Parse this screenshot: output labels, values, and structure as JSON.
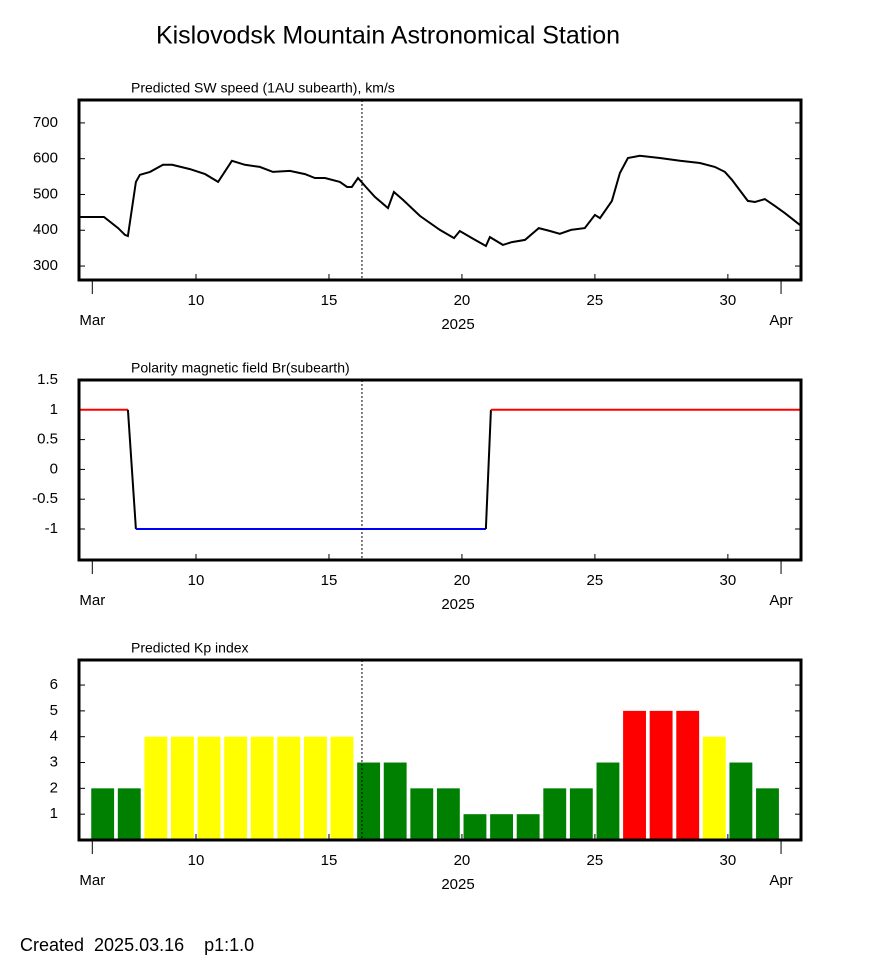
{
  "title": "Kislovodsk Mountain Astronomical Station",
  "footer": "Created  2025.03.16    p1:1.0",
  "chart_data": [
    {
      "type": "line",
      "title": "Predicted SW speed (1AU subearth), km/s",
      "color": "#000000",
      "x": [
        5.6,
        6.54,
        7.07,
        7.33,
        7.44,
        7.74,
        7.89,
        8.27,
        8.76,
        9.1,
        9.77,
        10.34,
        10.83,
        11.35,
        11.84,
        12.4,
        12.89,
        13.53,
        14.1,
        14.47,
        14.85,
        15.41,
        15.68,
        15.86,
        16.09,
        16.39,
        16.73,
        17.22,
        17.44,
        17.78,
        18.42,
        19.17,
        19.7,
        19.92,
        20.38,
        20.9,
        21.05,
        21.54,
        21.88,
        22.37,
        22.89,
        23.31,
        23.68,
        24.1,
        24.62,
        25,
        25.19,
        25.64,
        25.94,
        26.24,
        26.69,
        27.44,
        28.2,
        28.95,
        29.51,
        29.89,
        30.15,
        30.75,
        31.02,
        31.39,
        31.77,
        32.14,
        32.71
      ],
      "values": [
        437,
        437,
        406,
        387,
        384,
        535,
        555,
        563,
        583,
        583,
        571,
        557,
        535,
        594,
        583,
        577,
        563,
        566,
        557,
        546,
        546,
        535,
        521,
        521,
        546,
        521,
        493,
        462,
        507,
        485,
        440,
        401,
        378,
        398,
        378,
        356,
        381,
        359,
        367,
        373,
        406,
        398,
        390,
        401,
        406,
        443,
        434,
        482,
        560,
        602,
        608,
        602,
        594,
        588,
        577,
        563,
        541,
        482,
        479,
        487,
        468,
        448,
        415
      ],
      "xlim": [
        5.6,
        32.75
      ],
      "ylim": [
        261,
        764
      ],
      "yticks": [
        700,
        600,
        500,
        400,
        300
      ],
      "xticks": [
        10,
        15,
        20,
        25,
        30
      ],
      "month_labels": [
        {
          "value": 6.1,
          "label": "Mar"
        },
        {
          "value": 32,
          "label": "Apr"
        }
      ],
      "xlabel": "2025",
      "marker_x": 16.24
    },
    {
      "type": "line",
      "title": "Polarity magnetic field  Br(subearth)",
      "color": "#000000",
      "positive_color": "#ff0000",
      "negative_color": "#0000ff",
      "x": [
        5.6,
        7.44,
        7.74,
        20.9,
        21.09,
        32.75
      ],
      "values": [
        1,
        1,
        -1,
        -1,
        1,
        1
      ],
      "xlim": [
        5.6,
        32.75
      ],
      "ylim": [
        -1.52,
        1.5
      ],
      "yticks": [
        1.5,
        1,
        0.5,
        0,
        -0.5,
        -1
      ],
      "xticks": [
        10,
        15,
        20,
        25,
        30
      ],
      "month_labels": [
        {
          "value": 6.1,
          "label": "Mar"
        },
        {
          "value": 32,
          "label": "Apr"
        }
      ],
      "xlabel": "2025",
      "marker_x": 16.24
    },
    {
      "type": "bar",
      "title": "Predicted Kp index",
      "x": [
        6,
        7,
        8,
        9,
        10,
        11,
        12,
        13,
        14,
        15,
        16,
        17,
        18,
        19,
        20,
        21,
        22,
        23,
        24,
        25,
        26,
        27,
        28,
        29,
        30,
        31
      ],
      "values": [
        2,
        2,
        4,
        4,
        4,
        4,
        4,
        4,
        4,
        4,
        3,
        3,
        2,
        2,
        1,
        1,
        1,
        2,
        2,
        3,
        5,
        5,
        5,
        4,
        3,
        2
      ],
      "colors": [
        "#008000",
        "#008000",
        "#ffff00",
        "#ffff00",
        "#ffff00",
        "#ffff00",
        "#ffff00",
        "#ffff00",
        "#ffff00",
        "#ffff00",
        "#008000",
        "#008000",
        "#008000",
        "#008000",
        "#008000",
        "#008000",
        "#008000",
        "#008000",
        "#008000",
        "#008000",
        "#ff0000",
        "#ff0000",
        "#ff0000",
        "#ffff00",
        "#008000",
        "#008000"
      ],
      "xlim": [
        5.6,
        32.75
      ],
      "ylim": [
        0,
        6.97
      ],
      "yticks": [
        6,
        5,
        4,
        3,
        2,
        1
      ],
      "xticks": [
        10,
        15,
        20,
        25,
        30
      ],
      "month_labels": [
        {
          "value": 6.1,
          "label": "Mar"
        },
        {
          "value": 32,
          "label": "Apr"
        }
      ],
      "xlabel": "2025",
      "marker_x": 16.24
    }
  ]
}
